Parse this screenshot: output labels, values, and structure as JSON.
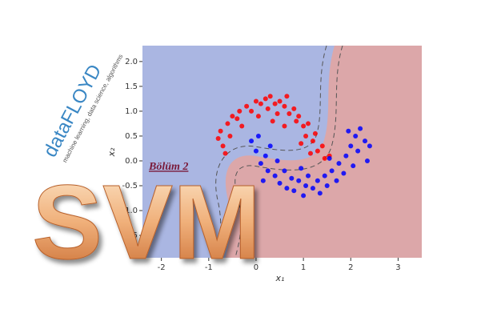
{
  "logo": {
    "name": "dataFLOYD",
    "tagline": "machine learning, data science, algorithms"
  },
  "badge": "Bölüm 2",
  "headline": "SVM",
  "chart_data": {
    "type": "scatter",
    "x_label": "x₁",
    "y_label": "x₂",
    "xlim": [
      -2.4,
      3.5
    ],
    "ylim": [
      -1.95,
      2.32
    ],
    "xticks": [
      -2,
      -1,
      0,
      1,
      2,
      3
    ],
    "yticks": [
      {
        "value": -1.5,
        "label": "-1.5"
      },
      {
        "value": -1,
        "label": "-1.0"
      },
      -0.5,
      {
        "value": 0,
        "label": "0.0"
      },
      0.5,
      {
        "value": 1,
        "label": "1.0"
      },
      1.5,
      {
        "value": 2,
        "label": "2.0"
      }
    ],
    "series": [
      {
        "color": "#ff0000",
        "x": [
          -0.8,
          -0.75,
          -0.7,
          -0.6,
          -0.55,
          -0.5,
          -0.4,
          -0.35,
          -0.3,
          -0.2,
          -0.1,
          0,
          0.05,
          0.1,
          0.2,
          0.25,
          0.3,
          0.4,
          0.45,
          0.5,
          0.6,
          0.65,
          0.7,
          0.8,
          0.85,
          0.9,
          1.0,
          1.05,
          1.1,
          1.2,
          1.25,
          1.3,
          1.4,
          1.45,
          1.55,
          0.95,
          0.6,
          -0.65,
          0.35,
          1.15
        ],
        "values": [
          0.45,
          0.6,
          0.3,
          0.75,
          0.5,
          0.9,
          0.85,
          1.0,
          0.7,
          1.1,
          1.0,
          1.2,
          0.9,
          1.15,
          1.25,
          1.05,
          1.3,
          1.15,
          0.95,
          1.2,
          1.1,
          1.3,
          0.95,
          1.05,
          0.8,
          0.9,
          0.7,
          0.5,
          0.75,
          0.4,
          0.55,
          0.2,
          0.3,
          0.05,
          0.1,
          0.35,
          0.7,
          0.15,
          0.8,
          0.15
        ]
      },
      {
        "color": "#0000ff",
        "x": [
          -0.1,
          0,
          0.05,
          0.1,
          0.2,
          0.25,
          0.3,
          0.4,
          0.45,
          0.5,
          0.6,
          0.65,
          0.75,
          0.8,
          0.9,
          1.0,
          1.05,
          1.1,
          1.2,
          1.3,
          1.35,
          1.45,
          1.5,
          1.6,
          1.7,
          1.75,
          1.85,
          1.9,
          2.0,
          2.05,
          2.1,
          2.15,
          2.2,
          2.3,
          2.35,
          1.95,
          1.55,
          0.15,
          0.95,
          2.4
        ],
        "values": [
          0.4,
          0.2,
          0.5,
          -0.05,
          0.1,
          -0.2,
          0.3,
          -0.3,
          0,
          -0.45,
          -0.2,
          -0.55,
          -0.35,
          -0.6,
          -0.4,
          -0.7,
          -0.5,
          -0.3,
          -0.55,
          -0.4,
          -0.65,
          -0.3,
          -0.5,
          -0.2,
          -0.4,
          -0.05,
          -0.25,
          0.1,
          0.3,
          -0.1,
          0.5,
          0.2,
          0.65,
          0.4,
          0,
          0.6,
          0.05,
          -0.4,
          -0.15,
          0.3
        ]
      }
    ]
  }
}
